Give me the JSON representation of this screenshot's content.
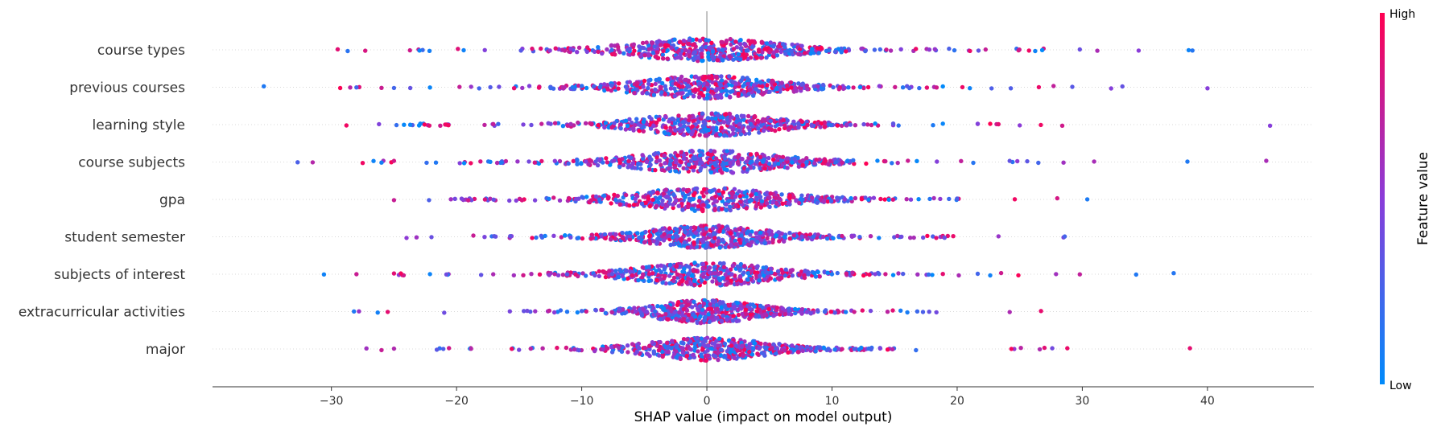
{
  "chart_data": {
    "type": "scatter",
    "subtype": "shap-beeswarm",
    "title": "",
    "xlabel": "SHAP value (impact on model output)",
    "xlim": [
      -39.5,
      48.5
    ],
    "xticks": [
      -30,
      -20,
      -10,
      0,
      10,
      20,
      30,
      40
    ],
    "xtick_labels": [
      "−30",
      "−20",
      "−10",
      "0",
      "10",
      "20",
      "30",
      "40"
    ],
    "features": [
      {
        "name": "course types",
        "min": -29.5,
        "max": 38.8,
        "spread": 5.5,
        "outliers": [
          -29.5,
          -28.7,
          -27.3,
          29.8,
          31.2,
          34.5,
          38.5,
          38.8
        ]
      },
      {
        "name": "previous courses",
        "min": -35.4,
        "max": 40.0,
        "spread": 5.0,
        "outliers": [
          -35.4,
          -29.3,
          -28.5,
          -28.0,
          -26.0,
          -25.0,
          29.2,
          32.3,
          33.2,
          40.0
        ]
      },
      {
        "name": "learning style",
        "min": -28.8,
        "max": 45.0,
        "spread": 5.0,
        "outliers": [
          -28.8,
          -26.2,
          -24.8,
          -24.2,
          -23.7,
          23.3,
          25.0,
          28.4,
          45.0
        ]
      },
      {
        "name": "course subjects",
        "min": -32.7,
        "max": 44.7,
        "spread": 5.5,
        "outliers": [
          -32.7,
          -31.5,
          -27.5,
          -26.0,
          -25.0,
          24.2,
          25.6,
          28.5,
          38.4,
          44.7
        ]
      },
      {
        "name": "gpa",
        "min": -25.0,
        "max": 30.4,
        "spread": 5.5,
        "outliers": [
          -25.0,
          -22.2,
          24.6,
          28.0,
          30.4
        ]
      },
      {
        "name": "student semester",
        "min": -24.0,
        "max": 28.6,
        "spread": 4.5,
        "outliers": [
          -24.0,
          -23.2,
          -22.0,
          23.3,
          28.5,
          28.6
        ]
      },
      {
        "name": "subjects of interest",
        "min": -30.6,
        "max": 37.3,
        "spread": 5.0,
        "outliers": [
          -30.6,
          -28.0,
          -25.0,
          27.9,
          29.8,
          34.3,
          37.3
        ]
      },
      {
        "name": "extracurricular activities",
        "min": -28.2,
        "max": 26.7,
        "spread": 4.0,
        "outliers": [
          -28.2,
          -27.8,
          -26.3,
          -25.5,
          24.2,
          26.7
        ]
      },
      {
        "name": "major",
        "min": -27.2,
        "max": 38.6,
        "spread": 4.5,
        "outliers": [
          -27.2,
          -26.0,
          -25.0,
          26.6,
          27.6,
          28.8,
          38.6
        ]
      }
    ],
    "colorbar": {
      "label": "Feature value",
      "high_label": "High",
      "low_label": "Low",
      "high_color": "#ff0052",
      "mid_color": "#8a3cd9",
      "low_color": "#008bfb"
    }
  }
}
